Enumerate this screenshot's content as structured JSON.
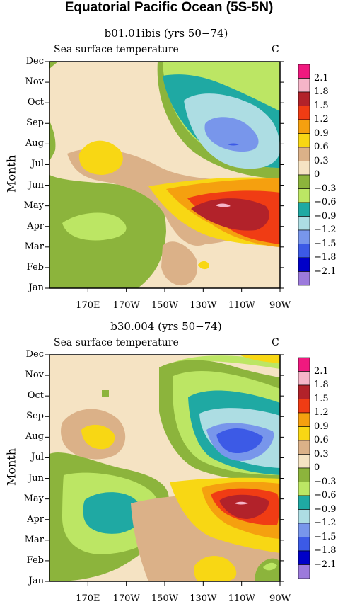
{
  "title": "Equatorial Pacific Ocean (5S-5N)",
  "colorbar": {
    "levels": [
      "2.1",
      "1.8",
      "1.5",
      "1.2",
      "0.9",
      "0.6",
      "0.3",
      "0",
      "−0.3",
      "−0.6",
      "−0.9",
      "−1.2",
      "−1.5",
      "−1.8",
      "−2.1"
    ],
    "colors": [
      "#f0197f",
      "#f5b5c8",
      "#b2222a",
      "#f03c14",
      "#f5a00f",
      "#f8d714",
      "#dbb188",
      "#f5e3c3",
      "#8cb43c",
      "#bce664",
      "#1fa9a3",
      "#addde3",
      "#7896eb",
      "#3c5ae6",
      "#0000c8",
      "#9c7adc"
    ]
  },
  "chart_data": [
    {
      "type": "heatmap",
      "title": "b01.01ibis (yrs 50−74)",
      "subtitle": "Sea surface temperature",
      "units": "C",
      "ylabel": "Month",
      "y_ticks": [
        "Dec",
        "Nov",
        "Oct",
        "Sep",
        "Aug",
        "Jul",
        "Jun",
        "May",
        "Apr",
        "Mar",
        "Feb",
        "Jan"
      ],
      "x_ticks": [
        "170E",
        "170W",
        "150W",
        "130W",
        "110W",
        "90W"
      ],
      "x_range": [
        150,
        270
      ],
      "levels": [
        -2.1,
        -1.8,
        -1.5,
        -1.2,
        -0.9,
        -0.6,
        -0.3,
        0,
        0.3,
        0.6,
        0.9,
        1.2,
        1.5,
        1.8,
        2.1
      ],
      "features": [
        {
          "lon": 240,
          "month": 8,
          "peak": -1.6,
          "description": "cold core"
        },
        {
          "lon": 238,
          "month": 5,
          "peak": 1.7,
          "description": "warm core"
        },
        {
          "lon": 172,
          "month": 4.5,
          "peak": -0.5,
          "description": "cool western patch"
        }
      ]
    },
    {
      "type": "heatmap",
      "title": "b30.004 (yrs 50−74)",
      "subtitle": "Sea surface temperature",
      "units": "C",
      "ylabel": "Month",
      "y_ticks": [
        "Dec",
        "Nov",
        "Oct",
        "Sep",
        "Aug",
        "Jul",
        "Jun",
        "May",
        "Apr",
        "Mar",
        "Feb",
        "Jan"
      ],
      "x_ticks": [
        "170E",
        "170W",
        "150W",
        "130W",
        "110W",
        "90W"
      ],
      "x_range": [
        150,
        270
      ],
      "levels": [
        -2.1,
        -1.8,
        -1.5,
        -1.2,
        -0.9,
        -0.6,
        -0.3,
        0,
        0.3,
        0.6,
        0.9,
        1.2,
        1.5,
        1.8,
        2.1
      ],
      "features": [
        {
          "lon": 240,
          "month": 8,
          "peak": -1.6,
          "description": "cold core"
        },
        {
          "lon": 240,
          "month": 5,
          "peak": 1.7,
          "description": "warm core"
        },
        {
          "lon": 175,
          "month": 4.5,
          "peak": -0.9,
          "description": "cool western patch"
        }
      ]
    }
  ]
}
